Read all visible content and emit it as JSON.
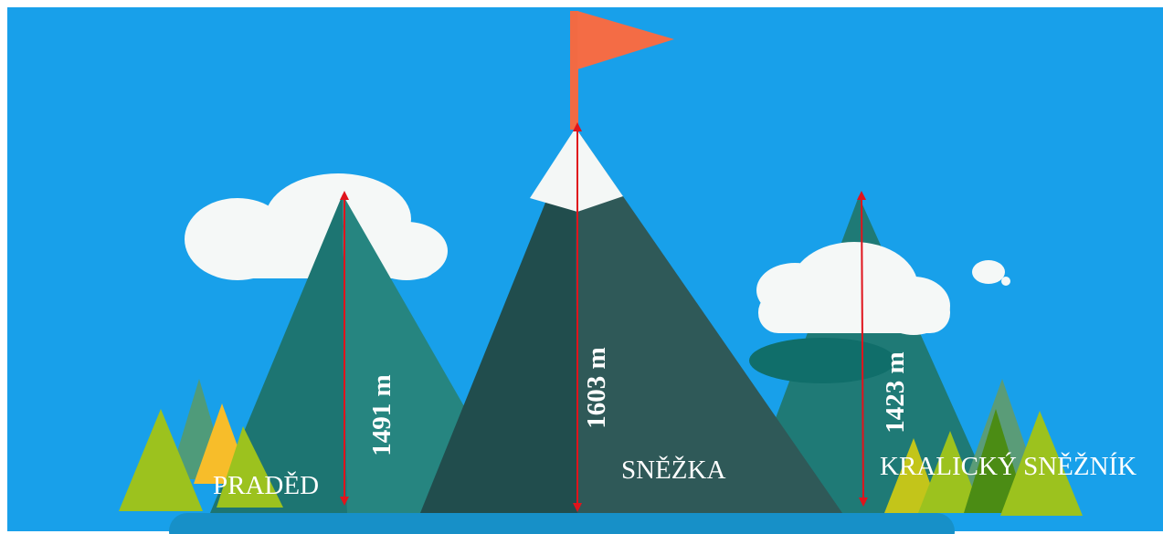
{
  "peaks": [
    {
      "name": "PRADĚD",
      "height": "1491 m"
    },
    {
      "name": "SNĚŽKA",
      "height": "1603 m"
    },
    {
      "name": "KRALICKÝ SNĚŽNÍK",
      "height": "1423 m"
    }
  ]
}
